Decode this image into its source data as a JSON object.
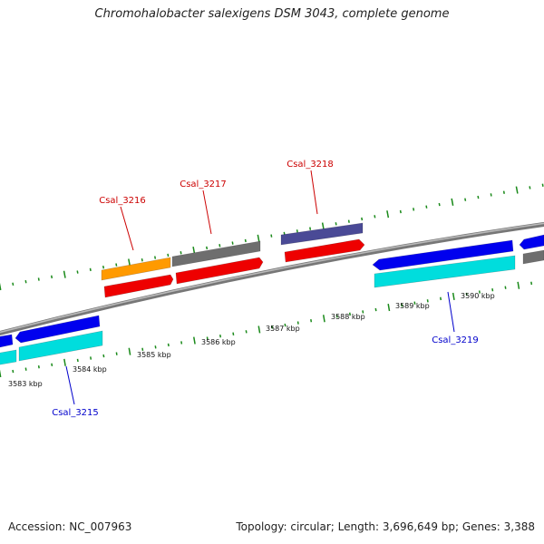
{
  "header": {
    "title": "Chromohalobacter salexigens DSM 3043, complete genome"
  },
  "footer": {
    "accession": "Accession: NC_007963",
    "summary": "Topology: circular; Length: 3,696,649 bp; Genes: 3,388"
  },
  "colors": {
    "backbone": "#888888",
    "tick": "#1a8a1a",
    "forward_label": "#cc0000",
    "reverse_label": "#0000cc",
    "orange": "#ff9a00",
    "gray": "#6e6e6e",
    "red": "#ee0000",
    "navy": "#4a4a96",
    "blue": "#0000ee",
    "cyan": "#00dddd"
  },
  "scale_labels": [
    "3583 kbp",
    "3584 kbp",
    "3585 kbp",
    "3586 kbp",
    "3587 kbp",
    "3588 kbp",
    "3589 kbp",
    "3590 kbp"
  ],
  "gene_labels": [
    {
      "text": "Csal_3215",
      "strand": "reverse"
    },
    {
      "text": "Csal_3216",
      "strand": "forward"
    },
    {
      "text": "Csal_3217",
      "strand": "forward"
    },
    {
      "text": "Csal_3218",
      "strand": "forward"
    },
    {
      "text": "Csal_3219",
      "strand": "reverse"
    }
  ]
}
